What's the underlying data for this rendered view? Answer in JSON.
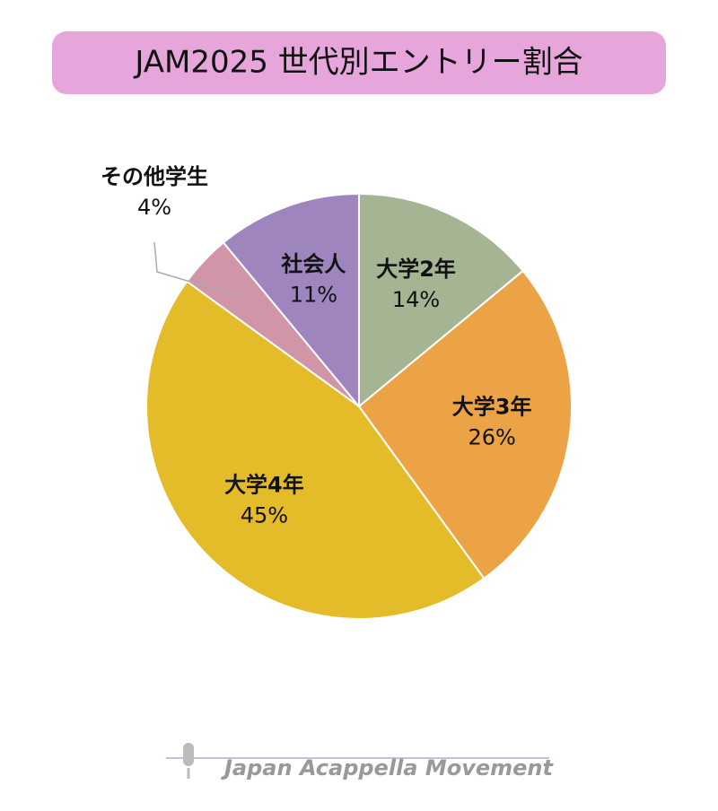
{
  "chart_data": {
    "type": "pie",
    "title": "JAM2025 世代別エントリー割合",
    "categories": [
      "大学2年",
      "大学3年",
      "大学4年",
      "その他学生",
      "社会人"
    ],
    "values": [
      14,
      26,
      45,
      4,
      11
    ],
    "value_labels": [
      "14%",
      "26%",
      "45%",
      "4%",
      "11%"
    ],
    "colors": [
      "#a5b594",
      "#eba346",
      "#e4bc2a",
      "#d096a8",
      "#9e85be"
    ]
  },
  "footer": "Japan Acappella Movement"
}
